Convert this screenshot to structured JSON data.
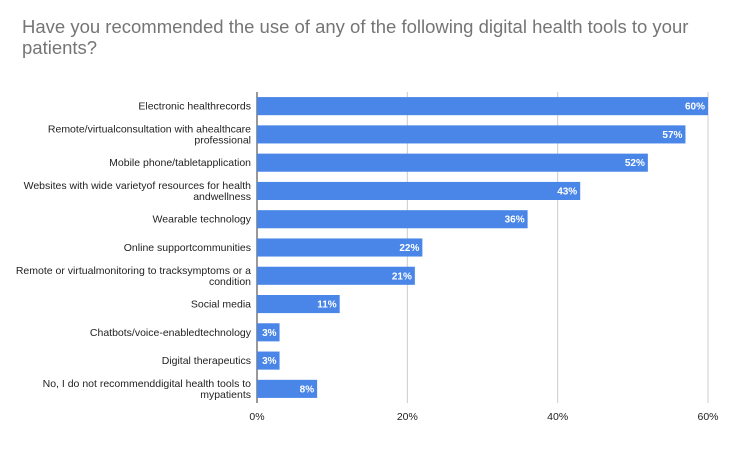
{
  "chart_data": {
    "type": "bar",
    "orientation": "horizontal",
    "title": "Have you recommended the use of any of the following digital health tools to your patients?",
    "categories": [
      [
        "Electronic healthrecords"
      ],
      [
        "Remote/virtualconsultation with ahealthcare",
        "professional"
      ],
      [
        "Mobile phone/tabletapplication"
      ],
      [
        "Websites with wide varietyof resources for health",
        "andwellness"
      ],
      [
        "Wearable technology"
      ],
      [
        "Online supportcommunities"
      ],
      [
        "Remote or virtualmonitoring to tracksymptoms or a",
        "condition"
      ],
      [
        "Social media"
      ],
      [
        "Chatbots/voice-enabledtechnology"
      ],
      [
        "Digital therapeutics"
      ],
      [
        "No, I do not recommenddigital health tools to",
        "mypatients"
      ]
    ],
    "values": [
      60,
      57,
      52,
      43,
      36,
      22,
      21,
      11,
      3,
      3,
      8
    ],
    "data_labels": [
      "60%",
      "57%",
      "52%",
      "43%",
      "36%",
      "22%",
      "21%",
      "11%",
      "3%",
      "3%",
      "8%"
    ],
    "xlim": [
      0,
      60
    ],
    "x_ticks": [
      0,
      20,
      40,
      60
    ],
    "x_tick_labels": [
      "0%",
      "20%",
      "40%",
      "60%"
    ],
    "xlabel": "",
    "ylabel": "",
    "grid": "vertical",
    "legend": "none",
    "bar_color": "#4a86e8",
    "grid_color": "#cccccc",
    "baseline_color": "#333333"
  }
}
